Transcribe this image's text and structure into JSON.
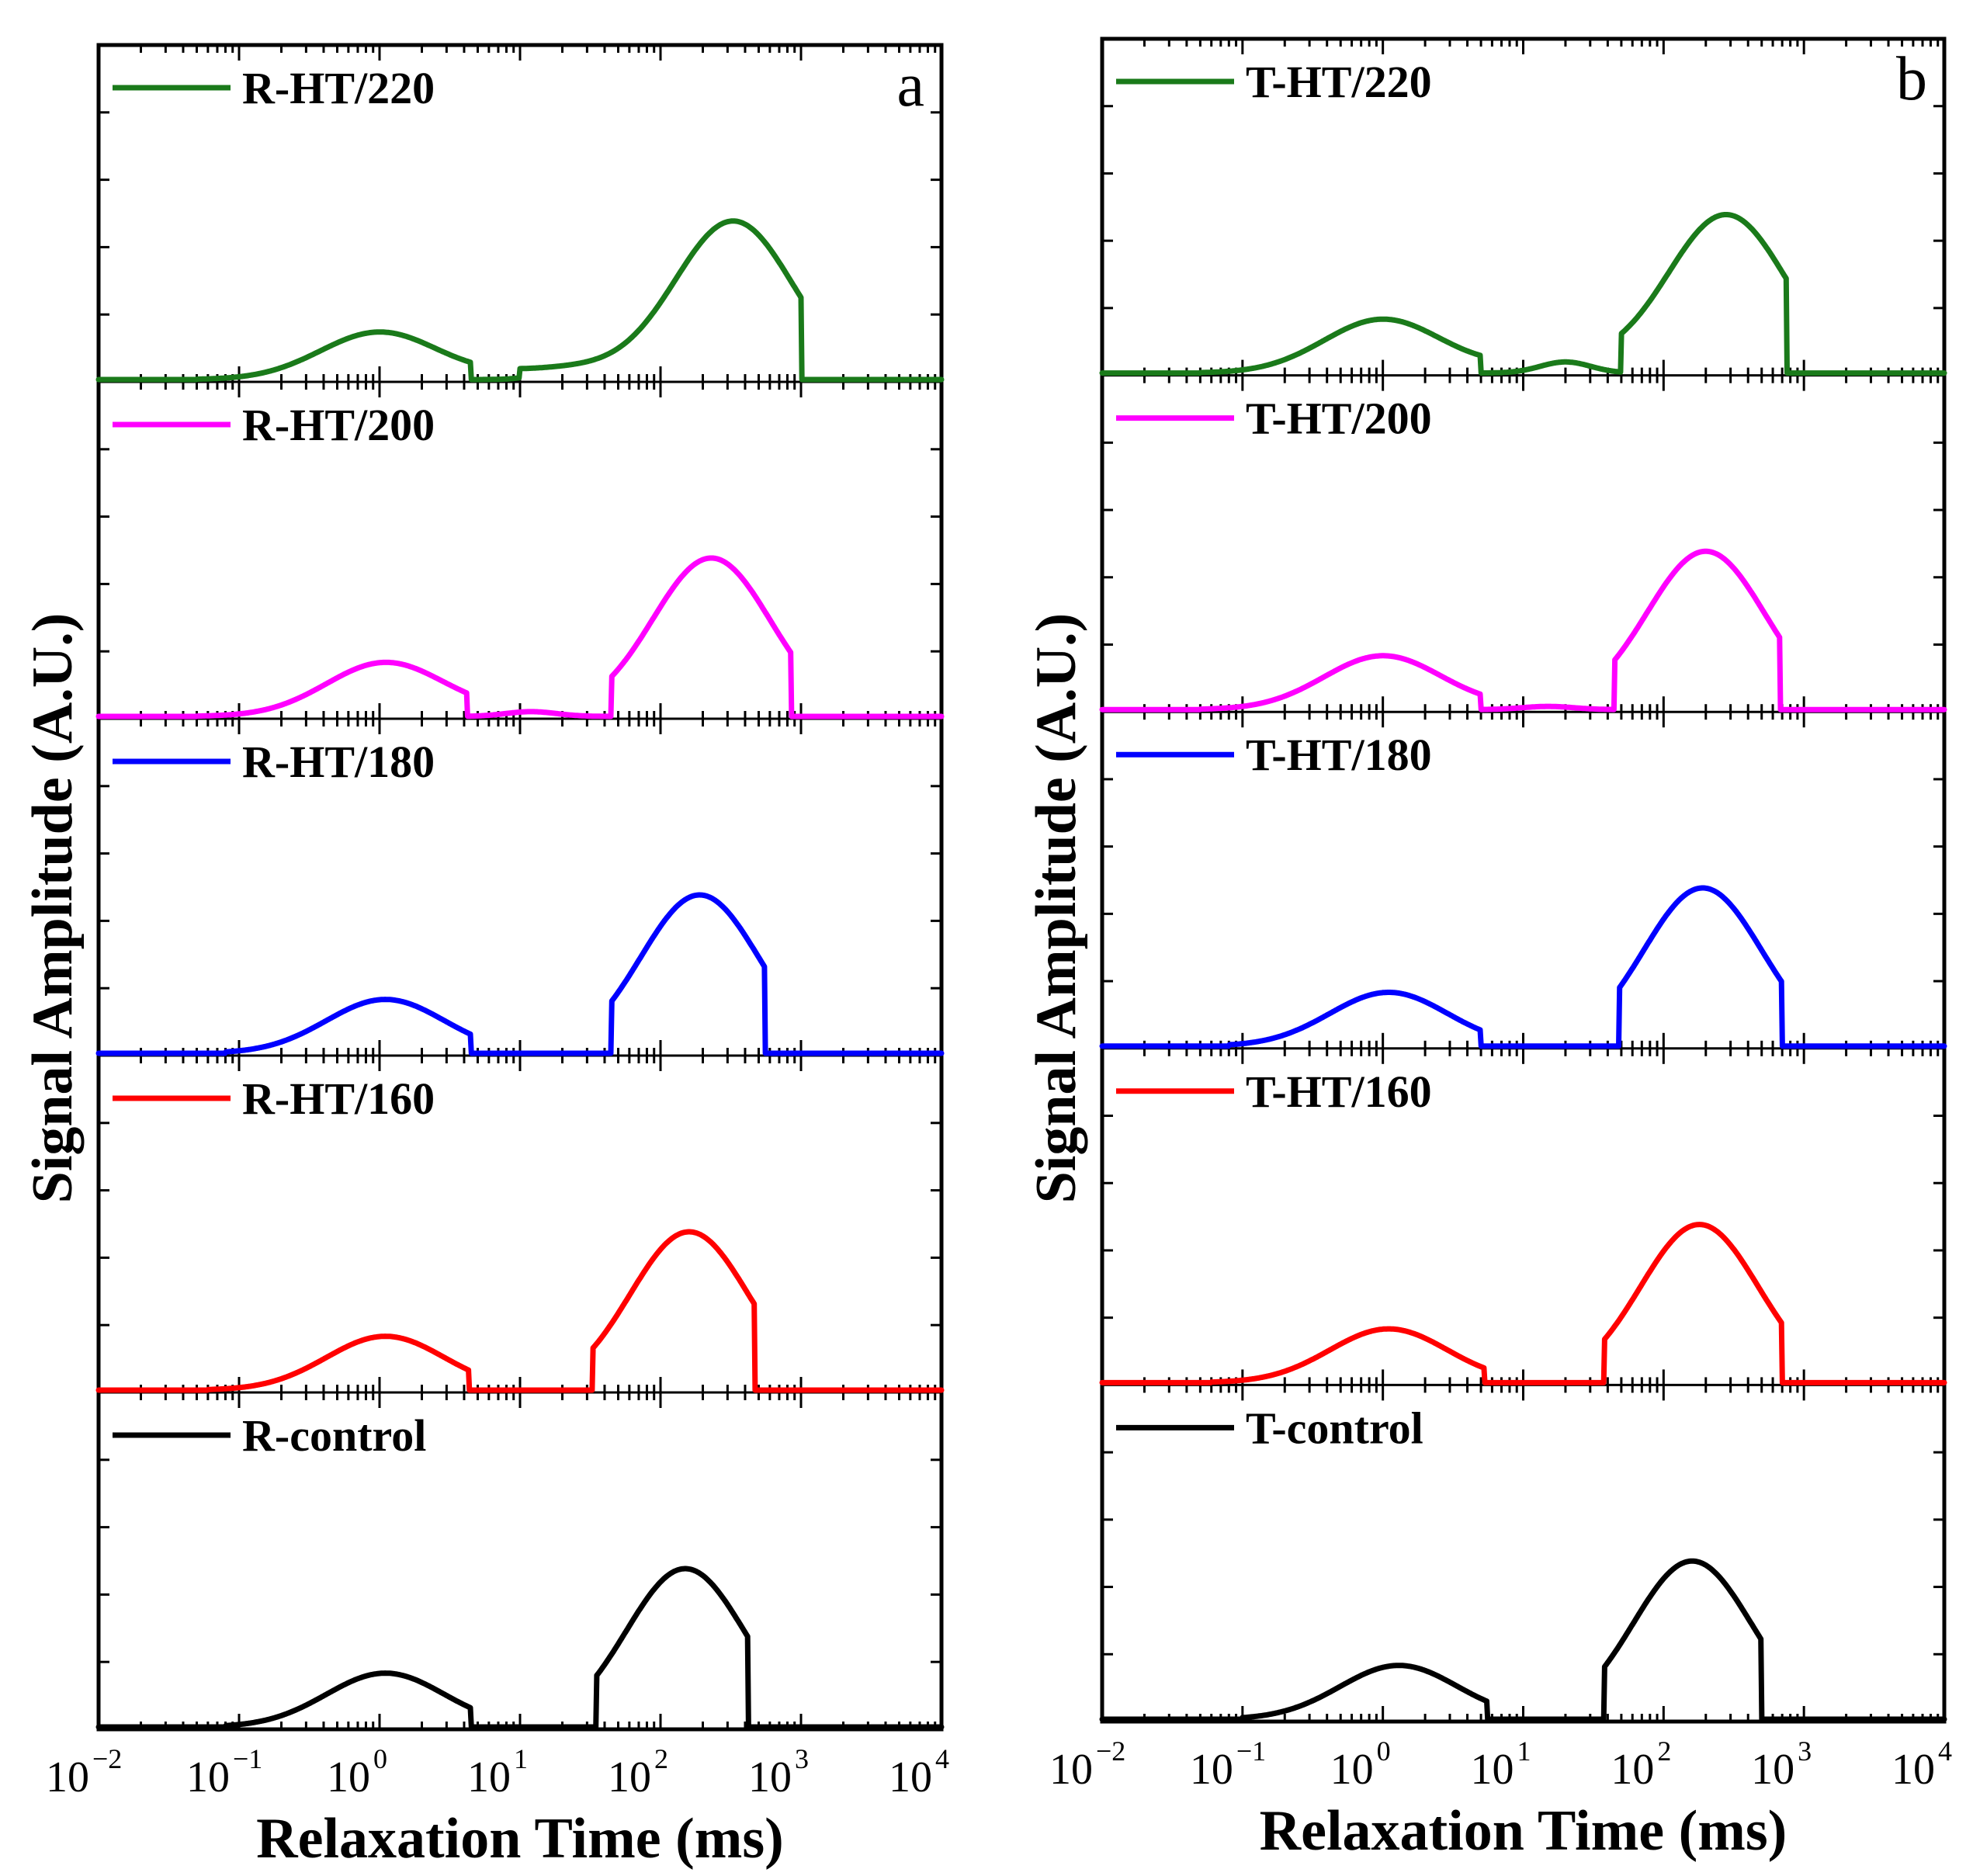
{
  "chart_data": [
    {
      "type": "line",
      "panel_label": "a",
      "xlabel": "Relaxation Time (ms)",
      "ylabel": "Signal Amplitude (A.U.)",
      "xscale": "log",
      "xlim": [
        0.01,
        10000
      ],
      "x_ticks": [
        "-2",
        "-1",
        "0",
        "1",
        "2",
        "3",
        "4"
      ],
      "stacked": true,
      "legend_placement": "top-left of each stacked sub-plot",
      "series": [
        {
          "name": "R-HT/220",
          "color": "#1a7a1a",
          "peaks": [
            {
              "center": 1.0,
              "height": 0.3
            },
            {
              "center": 22,
              "height": 0.07
            },
            {
              "center": 330,
              "height": 1.0
            }
          ],
          "cutoffs": [
            0.05,
            4.5,
            10,
            1000
          ]
        },
        {
          "name": "R-HT/200",
          "color": "#ff00ff",
          "peaks": [
            {
              "center": 1.1,
              "height": 0.34
            },
            {
              "center": 12,
              "height": 0.03
            },
            {
              "center": 230,
              "height": 1.0
            }
          ],
          "cutoffs": [
            0.05,
            4.2,
            45,
            850
          ]
        },
        {
          "name": "R-HT/180",
          "color": "#0000ff",
          "peaks": [
            {
              "center": 1.1,
              "height": 0.34
            },
            {
              "center": 190,
              "height": 1.0
            }
          ],
          "cutoffs": [
            0.08,
            4.5,
            45,
            550
          ]
        },
        {
          "name": "R-HT/160",
          "color": "#ff0000",
          "peaks": [
            {
              "center": 1.1,
              "height": 0.34
            },
            {
              "center": 160,
              "height": 1.0
            }
          ],
          "cutoffs": [
            0.06,
            4.3,
            33,
            470
          ]
        },
        {
          "name": "R-control",
          "color": "#000000",
          "peaks": [
            {
              "center": 1.1,
              "height": 0.34
            },
            {
              "center": 150,
              "height": 1.0
            }
          ],
          "cutoffs": [
            0.08,
            4.5,
            35,
            420
          ]
        }
      ]
    },
    {
      "type": "line",
      "panel_label": "b",
      "xlabel": "Relaxation Time (ms)",
      "ylabel": "Signal Amplitude (A.U.)",
      "xscale": "log",
      "xlim": [
        0.01,
        10000
      ],
      "x_ticks": [
        "-2",
        "-1",
        "0",
        "1",
        "2",
        "3",
        "4"
      ],
      "stacked": true,
      "legend_placement": "top-left of each stacked sub-plot",
      "series": [
        {
          "name": "T-HT/220",
          "color": "#1a7a1a",
          "peaks": [
            {
              "center": 1.0,
              "height": 0.34
            },
            {
              "center": 20,
              "height": 0.07
            },
            {
              "center": 280,
              "height": 1.0
            }
          ],
          "cutoffs": [
            0.05,
            5,
            50,
            750
          ]
        },
        {
          "name": "T-HT/200",
          "color": "#ff00ff",
          "peaks": [
            {
              "center": 1.0,
              "height": 0.34
            },
            {
              "center": 15,
              "height": 0.02
            },
            {
              "center": 200,
              "height": 1.0
            }
          ],
          "cutoffs": [
            0.05,
            5,
            45,
            680
          ]
        },
        {
          "name": "T-HT/180",
          "color": "#0000ff",
          "peaks": [
            {
              "center": 1.1,
              "height": 0.34
            },
            {
              "center": 190,
              "height": 1.0
            }
          ],
          "cutoffs": [
            0.08,
            5,
            48,
            700
          ]
        },
        {
          "name": "T-HT/160",
          "color": "#ff0000",
          "peaks": [
            {
              "center": 1.1,
              "height": 0.34
            },
            {
              "center": 180,
              "height": 1.0
            }
          ],
          "cutoffs": [
            0.06,
            5.3,
            38,
            700
          ]
        },
        {
          "name": "T-control",
          "color": "#000000",
          "peaks": [
            {
              "center": 1.3,
              "height": 0.34
            },
            {
              "center": 160,
              "height": 1.0
            }
          ],
          "cutoffs": [
            0.1,
            5.5,
            38,
            500
          ]
        }
      ]
    }
  ]
}
